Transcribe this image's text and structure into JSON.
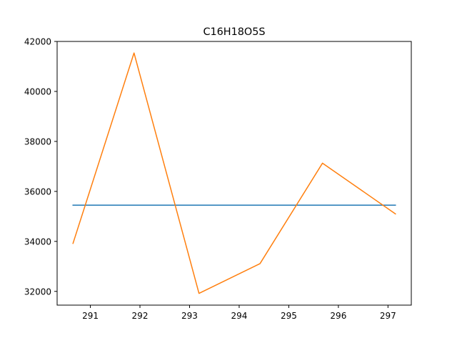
{
  "chart_data": {
    "type": "line",
    "title": "C16H18O5S",
    "xlabel": "",
    "ylabel": "",
    "xlim": [
      290.33,
      297.47
    ],
    "ylim": [
      31450,
      42000
    ],
    "x_ticks": [
      291,
      292,
      293,
      294,
      295,
      296,
      297
    ],
    "y_ticks": [
      32000,
      34000,
      36000,
      38000,
      40000,
      42000
    ],
    "grid": false,
    "legend": "none",
    "series": [
      {
        "color": "#1f77b4",
        "x": [
          290.65,
          297.15
        ],
        "y": [
          35450,
          35450
        ]
      },
      {
        "color": "#ff7f0e",
        "x": [
          290.65,
          291.88,
          293.19,
          294.42,
          295.68,
          297.15
        ],
        "y": [
          33920,
          41540,
          31920,
          33110,
          37130,
          35100
        ]
      }
    ]
  }
}
